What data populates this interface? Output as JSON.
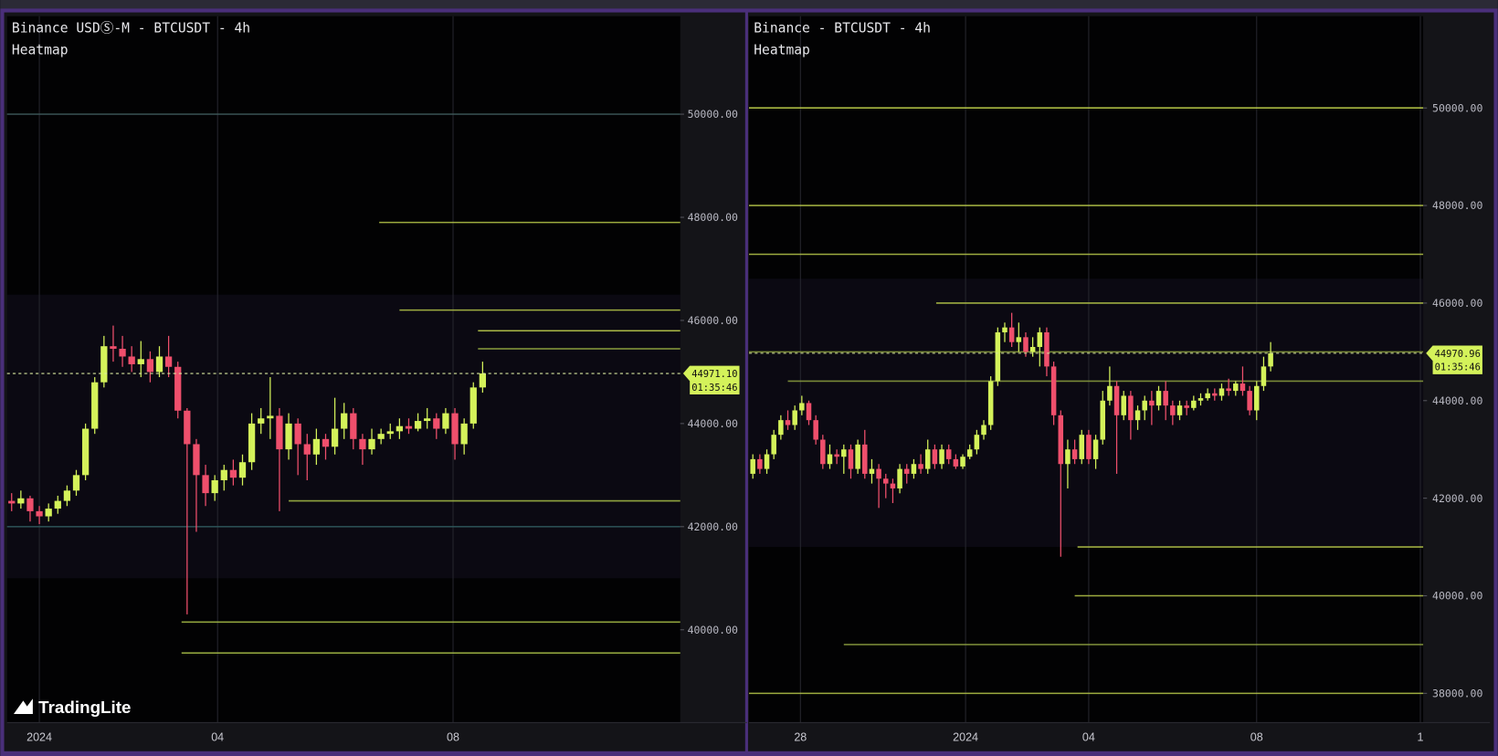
{
  "logo": "TradingLite",
  "chart_data": [
    {
      "type": "candlestick",
      "title": "Binance USDⓈ-M - BTCUSDT - 4h",
      "subtitle": "Heatmap",
      "open": [
        42500,
        42450,
        42550,
        42300,
        42200,
        42350,
        42500,
        42700,
        43000,
        43900,
        44800,
        45500,
        45450,
        45300,
        45150,
        45250,
        45000,
        45300,
        45100,
        44250,
        43600,
        43000,
        42650,
        42900,
        43100,
        42950,
        43250,
        44000,
        44100,
        44150,
        43500,
        44000,
        43600,
        43400,
        43700,
        43550,
        43900,
        44200,
        43700,
        43500,
        43700,
        43800,
        43850,
        43950,
        43900,
        44050,
        44100,
        43900,
        44200,
        43600,
        44000,
        44700
      ],
      "high": [
        42650,
        42700,
        42600,
        42400,
        42450,
        42600,
        42800,
        43100,
        44000,
        44900,
        45700,
        45900,
        45700,
        45500,
        45600,
        45400,
        45500,
        45700,
        45200,
        44300,
        43700,
        43200,
        43000,
        43200,
        43300,
        43400,
        44200,
        44300,
        44900,
        44300,
        44200,
        44100,
        43800,
        43900,
        43800,
        44500,
        44400,
        44300,
        43800,
        43900,
        43900,
        44000,
        44100,
        44100,
        44200,
        44300,
        44200,
        44300,
        44300,
        44100,
        44800,
        45200
      ],
      "low": [
        42300,
        42350,
        42100,
        42050,
        42100,
        42250,
        42400,
        42600,
        42900,
        43800,
        44700,
        45200,
        45100,
        45000,
        44900,
        44800,
        44900,
        44900,
        44100,
        40300,
        41900,
        42400,
        42500,
        42700,
        42800,
        42800,
        43100,
        43800,
        43700,
        42300,
        43300,
        43000,
        42900,
        43200,
        43300,
        43400,
        43700,
        43500,
        43200,
        43400,
        43600,
        43700,
        43700,
        43800,
        43850,
        43900,
        43700,
        43800,
        43300,
        43400,
        43900,
        44600
      ],
      "close": [
        42450,
        42550,
        42300,
        42200,
        42350,
        42500,
        42700,
        43000,
        43900,
        44800,
        45500,
        45450,
        45300,
        45150,
        45250,
        45000,
        45300,
        45100,
        44250,
        43600,
        43000,
        42650,
        42900,
        43100,
        42950,
        43250,
        44000,
        44100,
        44150,
        43500,
        44000,
        43600,
        43400,
        43700,
        43550,
        43900,
        44200,
        43700,
        43500,
        43700,
        43800,
        43850,
        43950,
        43900,
        44050,
        44100,
        43900,
        44200,
        43600,
        44000,
        44700,
        44971.1
      ],
      "up_color": "#d4f25a",
      "down_color": "#ef4f6c",
      "xlim": [
        -0.5,
        72.4
      ],
      "xticks": [
        {
          "value": 3,
          "label": "2024"
        },
        {
          "value": 22.3,
          "label": "04"
        },
        {
          "value": 47.8,
          "label": "08"
        }
      ],
      "ylim": [
        38200,
        51900
      ],
      "yticks": [
        {
          "value": 40000,
          "label": "40000.00"
        },
        {
          "value": 42000,
          "label": "42000.00"
        },
        {
          "value": 44000,
          "label": "44000.00"
        },
        {
          "value": 46000,
          "label": "46000.00"
        },
        {
          "value": 48000,
          "label": "48000.00"
        },
        {
          "value": 50000,
          "label": "50000.00"
        }
      ],
      "last_price": {
        "value": 44971.1,
        "label": "44971.10"
      },
      "countdown": "01:35:46",
      "grid": true,
      "levels": [
        {
          "price": 50000,
          "from": -0.5,
          "color": "#3f5a5a"
        },
        {
          "price": 47900,
          "from": 39.8,
          "color": "#b9c94a"
        },
        {
          "price": 46200,
          "from": 42,
          "color": "#b9c94a"
        },
        {
          "price": 45800,
          "from": 50.5,
          "color": "#c7d84e"
        },
        {
          "price": 45450,
          "from": 50.5,
          "color": "#9fb845"
        },
        {
          "price": 42500,
          "from": 30,
          "color": "#a8bf48"
        },
        {
          "price": 42000,
          "from": -0.5,
          "color": "#2f5a5e"
        },
        {
          "price": 40150,
          "from": 18.4,
          "color": "#a8bf48"
        },
        {
          "price": 39550,
          "from": 18.4,
          "color": "#a8bf48"
        }
      ]
    },
    {
      "type": "candlestick",
      "title": "Binance - BTCUSDT - 4h",
      "subtitle": "Heatmap",
      "open": [
        42500,
        42800,
        42600,
        42900,
        43300,
        43600,
        43500,
        43800,
        43950,
        43600,
        43200,
        42700,
        42900,
        42850,
        43000,
        42600,
        43100,
        42500,
        42600,
        42400,
        42300,
        42200,
        42600,
        42500,
        42700,
        42600,
        43000,
        42700,
        43000,
        42800,
        42650,
        42850,
        43000,
        43300,
        43500,
        44400,
        45400,
        45500,
        45200,
        45300,
        45000,
        45100,
        45400,
        44700,
        43700,
        42700,
        43000,
        42800,
        43300,
        42800,
        43200,
        44000,
        44300,
        43700,
        44100,
        43600,
        43800,
        44000,
        43900,
        44200,
        43900,
        43700,
        43900,
        43850,
        44000,
        44050,
        44150,
        44100,
        44250,
        44200,
        44350,
        44200,
        43800,
        44300,
        44700
      ],
      "high": [
        42900,
        42900,
        43000,
        43400,
        43700,
        43800,
        43900,
        44100,
        44000,
        43700,
        43300,
        43100,
        43000,
        43100,
        43100,
        43200,
        43400,
        42800,
        42700,
        42500,
        42400,
        42700,
        42700,
        42800,
        42900,
        43200,
        43100,
        43100,
        43100,
        42900,
        42900,
        43100,
        43400,
        43600,
        44500,
        45500,
        45600,
        45800,
        45600,
        45400,
        45300,
        45500,
        45500,
        44800,
        43800,
        43200,
        43200,
        43400,
        43400,
        43300,
        44200,
        44700,
        44400,
        44200,
        44200,
        43900,
        44100,
        44200,
        44300,
        44400,
        44000,
        44000,
        44000,
        44100,
        44150,
        44250,
        44250,
        44350,
        44450,
        44400,
        44700,
        44300,
        44400,
        44900,
        45200
      ],
      "low": [
        42400,
        42500,
        42500,
        42800,
        43200,
        43400,
        43400,
        43700,
        43500,
        43100,
        42600,
        42600,
        42700,
        42500,
        42400,
        42500,
        42400,
        42300,
        41800,
        42000,
        41900,
        42100,
        42300,
        42400,
        42500,
        42500,
        42600,
        42600,
        42700,
        42600,
        42600,
        42800,
        42900,
        43200,
        43400,
        44300,
        45200,
        45100,
        45000,
        44900,
        44900,
        44700,
        44500,
        43500,
        40800,
        42200,
        42700,
        42700,
        42700,
        42600,
        43100,
        43900,
        42500,
        43600,
        43200,
        43400,
        43600,
        43500,
        43800,
        43600,
        43500,
        43600,
        43700,
        43800,
        43900,
        44000,
        44000,
        44000,
        44100,
        44100,
        44100,
        43700,
        43600,
        44200,
        44600
      ],
      "close": [
        42800,
        42600,
        42900,
        43300,
        43600,
        43500,
        43800,
        43950,
        43600,
        43200,
        42700,
        42900,
        42850,
        43000,
        42600,
        43100,
        42500,
        42600,
        42400,
        42300,
        42200,
        42600,
        42500,
        42700,
        42600,
        43000,
        42700,
        43000,
        42800,
        42650,
        42850,
        43000,
        43300,
        43500,
        44400,
        45400,
        45500,
        45200,
        45300,
        45000,
        45100,
        45400,
        44700,
        43700,
        42700,
        43000,
        42800,
        43300,
        42800,
        43200,
        44000,
        44300,
        43700,
        44100,
        43600,
        43800,
        44000,
        43900,
        44200,
        43900,
        43700,
        43900,
        43850,
        44000,
        44050,
        44150,
        44100,
        44250,
        44200,
        44350,
        44200,
        43800,
        44300,
        44700,
        44970.96
      ],
      "up_color": "#d4f25a",
      "down_color": "#ef4f6c",
      "xlim": [
        -0.55,
        95.8
      ],
      "xticks": [
        {
          "value": 6.8,
          "label": "28"
        },
        {
          "value": 30.4,
          "label": "2024"
        },
        {
          "value": 48,
          "label": "04"
        },
        {
          "value": 72,
          "label": "08"
        },
        {
          "value": 95.4,
          "label": "1"
        }
      ],
      "ylim": [
        37400,
        51880
      ],
      "yticks": [
        {
          "value": 38000,
          "label": "38000.00"
        },
        {
          "value": 40000,
          "label": "40000.00"
        },
        {
          "value": 42000,
          "label": "42000.00"
        },
        {
          "value": 44000,
          "label": "44000.00"
        },
        {
          "value": 46000,
          "label": "46000.00"
        },
        {
          "value": 48000,
          "label": "48000.00"
        },
        {
          "value": 50000,
          "label": "50000.00"
        }
      ],
      "last_price": {
        "value": 44970.96,
        "label": "44970.96"
      },
      "countdown": "01:35:46",
      "grid": true,
      "levels": [
        {
          "price": 50000,
          "from": -0.55,
          "color": "#c7d84e"
        },
        {
          "price": 48000,
          "from": -0.55,
          "color": "#b9c94a"
        },
        {
          "price": 47000,
          "from": -0.55,
          "color": "#b9c94a"
        },
        {
          "price": 46000,
          "from": 26.2,
          "color": "#b9c94a"
        },
        {
          "price": 45000,
          "from": -0.55,
          "color": "#8da03f"
        },
        {
          "price": 44400,
          "from": 5,
          "color": "#8da03f"
        },
        {
          "price": 41000,
          "from": 46.4,
          "color": "#b9c94a"
        },
        {
          "price": 40000,
          "from": 46,
          "color": "#b9c94a"
        },
        {
          "price": 39000,
          "from": 13,
          "color": "#8da03f"
        },
        {
          "price": 38000,
          "from": -0.55,
          "color": "#b9c94a"
        }
      ]
    }
  ]
}
